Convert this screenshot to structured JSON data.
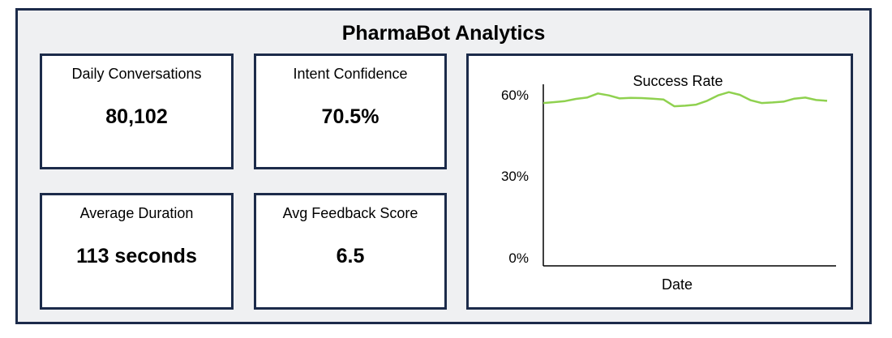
{
  "dashboard": {
    "title": "PharmaBot Analytics"
  },
  "kpis": [
    {
      "label": "Daily Conversations",
      "value": "80,102"
    },
    {
      "label": "Intent Confidence",
      "value": "70.5%"
    },
    {
      "label": "Average Duration",
      "value": "113 seconds"
    },
    {
      "label": "Avg Feedback Score",
      "value": "6.5"
    }
  ],
  "chart_data": {
    "type": "line",
    "title": "Success Rate",
    "xlabel": "Date",
    "ylabel": "",
    "ylim": [
      0,
      60
    ],
    "yticks": [
      "0%",
      "30%",
      "60%"
    ],
    "grid": false,
    "line_color": "#8fd14f",
    "series": [
      {
        "values": [
          57,
          57.3,
          57.7,
          58.5,
          59,
          60.5,
          59.8,
          58.7,
          58.9,
          58.8,
          58.6,
          58.3,
          55.8,
          56,
          56.4,
          57.8,
          59.8,
          61,
          60,
          58,
          57,
          57.2,
          57.5,
          58.6,
          59,
          58.1,
          57.8
        ]
      }
    ]
  }
}
